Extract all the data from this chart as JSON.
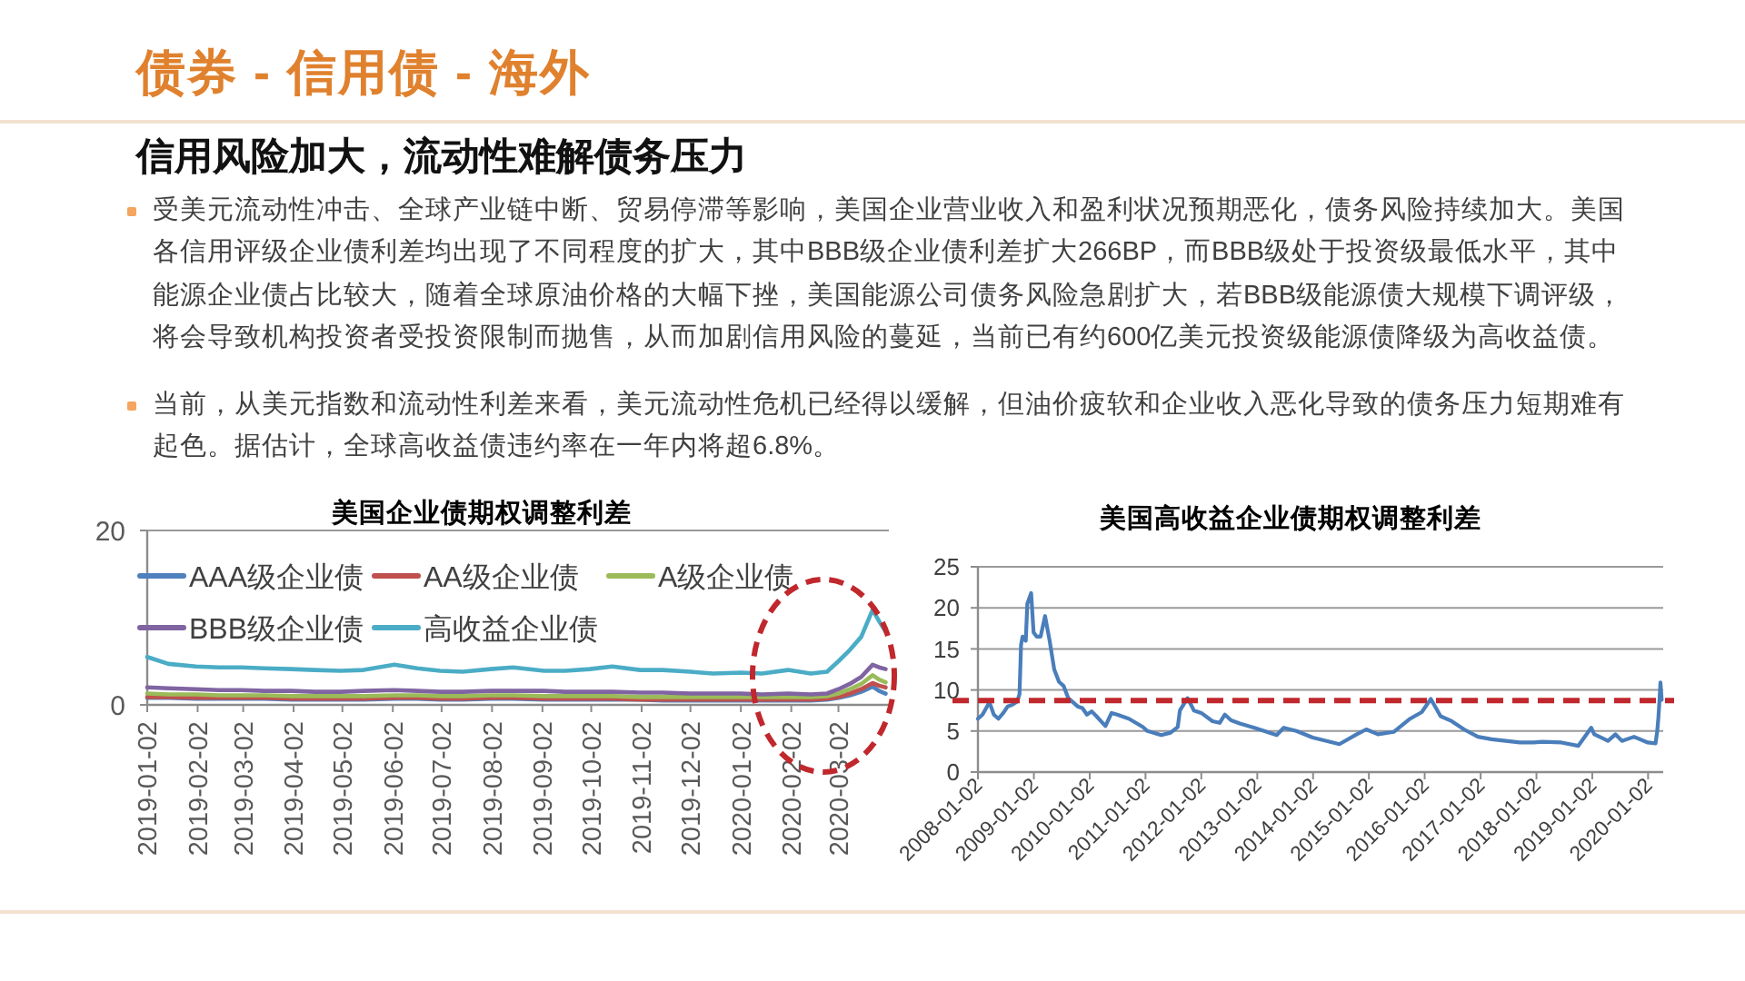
{
  "chart_data": [
    {
      "type": "other",
      "title": "债券 - 信用债 - 海外",
      "subtitle": "信用风险加大，流动性难解债务压力",
      "annotations": [
        "受美元流动性冲击、全球产业链中断、贸易停滞等影响，美国企业营业收入和盈利状况预期恶化，债务风险持续加大。美国各信用评级企业债利差均出现了不同程度的扩大，其中BBB级企业债利差扩大266BP，而BBB级处于投资级最低水平，其中能源企业债占比较大，随着全球原油价格的大幅下挫，美国能源公司债务风险急剧扩大，若BBB级能源债大规模下调评级，将会导致机构投资者受投资限制而抛售，从而加剧信用风险的蔓延，当前已有约600亿美元投资级能源债降级为高收益债。",
        "当前，从美元指数和流动性利差来看，美元流动性危机已经得以缓解，但油价疲软和企业收入恶化导致的债务压力短期难有起色。据估计，全球高收益债违约率在一年内将超6.8%。"
      ]
    },
    {
      "type": "line",
      "title": "美国企业债期权调整利差",
      "x": [
        "2019-01-02",
        "2019-01-15",
        "2019-02-01",
        "2019-02-15",
        "2019-03-01",
        "2019-03-15",
        "2019-04-01",
        "2019-04-15",
        "2019-05-01",
        "2019-05-15",
        "2019-06-03",
        "2019-06-17",
        "2019-07-01",
        "2019-07-15",
        "2019-08-01",
        "2019-08-15",
        "2019-09-03",
        "2019-09-16",
        "2019-10-01",
        "2019-10-15",
        "2019-11-01",
        "2019-11-15",
        "2019-12-02",
        "2019-12-16",
        "2020-01-02",
        "2020-01-15",
        "2020-01-31",
        "2020-02-14",
        "2020-02-24",
        "2020-03-02",
        "2020-03-09",
        "2020-03-16",
        "2020-03-23",
        "2020-03-27",
        "2020-03-31"
      ],
      "series": [
        {
          "name": "AAA级企业债",
          "color": "#4f81bd",
          "values": [
            0.8,
            0.8,
            0.7,
            0.7,
            0.7,
            0.7,
            0.6,
            0.6,
            0.6,
            0.6,
            0.7,
            0.7,
            0.6,
            0.6,
            0.7,
            0.7,
            0.6,
            0.6,
            0.6,
            0.6,
            0.6,
            0.5,
            0.5,
            0.5,
            0.5,
            0.5,
            0.5,
            0.5,
            0.6,
            0.8,
            1.1,
            1.5,
            2.1,
            1.6,
            1.3
          ]
        },
        {
          "name": "AA级企业债",
          "color": "#c0504d",
          "values": [
            0.9,
            0.9,
            0.8,
            0.8,
            0.8,
            0.8,
            0.7,
            0.7,
            0.7,
            0.7,
            0.8,
            0.8,
            0.7,
            0.7,
            0.8,
            0.8,
            0.7,
            0.7,
            0.7,
            0.7,
            0.6,
            0.6,
            0.6,
            0.6,
            0.6,
            0.6,
            0.6,
            0.6,
            0.7,
            0.9,
            1.3,
            1.8,
            2.5,
            2.2,
            2.0
          ]
        },
        {
          "name": "A级企业债",
          "color": "#9bbb59",
          "values": [
            1.3,
            1.2,
            1.2,
            1.1,
            1.1,
            1.1,
            1.0,
            1.0,
            1.0,
            1.0,
            1.1,
            1.1,
            1.0,
            1.0,
            1.1,
            1.1,
            1.0,
            1.0,
            1.0,
            1.0,
            0.9,
            0.9,
            0.9,
            0.9,
            0.9,
            0.9,
            0.9,
            0.9,
            1.0,
            1.3,
            1.8,
            2.4,
            3.4,
            2.9,
            2.6
          ]
        },
        {
          "name": "BBB级企业债",
          "color": "#8064a2",
          "values": [
            2.0,
            1.9,
            1.8,
            1.7,
            1.7,
            1.6,
            1.6,
            1.5,
            1.5,
            1.6,
            1.7,
            1.6,
            1.5,
            1.5,
            1.6,
            1.6,
            1.6,
            1.5,
            1.5,
            1.5,
            1.4,
            1.4,
            1.3,
            1.3,
            1.3,
            1.2,
            1.3,
            1.2,
            1.3,
            1.8,
            2.4,
            3.2,
            4.6,
            4.3,
            4.1
          ]
        },
        {
          "name": "高收益企业债",
          "color": "#4bacc6",
          "values": [
            5.5,
            4.7,
            4.4,
            4.3,
            4.3,
            4.2,
            4.1,
            4.0,
            3.9,
            4.0,
            4.6,
            4.2,
            3.9,
            3.8,
            4.1,
            4.3,
            3.9,
            3.9,
            4.1,
            4.4,
            4.0,
            4.0,
            3.8,
            3.6,
            3.7,
            3.6,
            4.0,
            3.6,
            3.8,
            5.0,
            6.3,
            7.8,
            10.9,
            9.6,
            8.4
          ]
        }
      ],
      "xlim": [
        "2019-01-02",
        "2020-04-02"
      ],
      "xticks": [
        "2019-01-02",
        "2019-02-02",
        "2019-03-02",
        "2019-04-02",
        "2019-05-02",
        "2019-06-02",
        "2019-07-02",
        "2019-08-02",
        "2019-09-02",
        "2019-10-02",
        "2019-11-02",
        "2019-12-02",
        "2020-01-02",
        "2020-02-02",
        "2020-03-02"
      ],
      "ylim": [
        0,
        20
      ],
      "yticks": [
        0,
        20
      ],
      "grid": "y",
      "legend": "top"
    },
    {
      "type": "line",
      "title": "美国高收益企业债期权调整利差",
      "x": [
        "2008-01-02",
        "2008-02-01",
        "2008-03-17",
        "2008-04-15",
        "2008-05-15",
        "2008-06-16",
        "2008-07-15",
        "2008-08-15",
        "2008-09-15",
        "2008-09-30",
        "2008-10-10",
        "2008-10-20",
        "2008-11-10",
        "2008-11-20",
        "2008-12-15",
        "2008-12-31",
        "2009-01-20",
        "2009-02-15",
        "2009-03-16",
        "2009-04-15",
        "2009-05-15",
        "2009-06-15",
        "2009-07-15",
        "2009-08-15",
        "2009-09-15",
        "2009-10-15",
        "2009-11-15",
        "2009-12-15",
        "2010-01-15",
        "2010-02-15",
        "2010-04-15",
        "2010-05-25",
        "2010-07-01",
        "2010-09-15",
        "2010-12-15",
        "2011-01-15",
        "2011-04-15",
        "2011-06-15",
        "2011-08-01",
        "2011-08-15",
        "2011-10-04",
        "2011-11-15",
        "2012-01-02",
        "2012-03-15",
        "2012-05-01",
        "2012-06-04",
        "2012-07-15",
        "2012-09-14",
        "2012-12-14",
        "2013-05-09",
        "2013-06-24",
        "2013-09-15",
        "2013-12-31",
        "2014-06-23",
        "2014-10-15",
        "2014-12-16",
        "2015-03-02",
        "2015-06-15",
        "2015-09-29",
        "2015-12-14",
        "2016-02-11",
        "2016-04-15",
        "2016-06-27",
        "2016-09-15",
        "2016-12-15",
        "2017-03-15",
        "2017-06-15",
        "2017-09-15",
        "2017-12-15",
        "2018-02-09",
        "2018-06-15",
        "2018-10-03",
        "2018-12-26",
        "2019-01-15",
        "2019-04-15",
        "2019-06-03",
        "2019-07-15",
        "2019-10-02",
        "2019-12-31",
        "2020-02-20",
        "2020-03-02",
        "2020-03-09",
        "2020-03-16",
        "2020-03-23",
        "2020-03-31"
      ],
      "series": [
        {
          "color": "#4a7ebb",
          "values": [
            6.5,
            7.0,
            8.5,
            7.0,
            6.5,
            7.2,
            8.0,
            8.2,
            8.6,
            9.5,
            15.5,
            16.5,
            16.0,
            20.5,
            21.8,
            17.0,
            16.5,
            16.5,
            19.0,
            16.0,
            12.5,
            11.0,
            10.5,
            9.0,
            8.5,
            8.0,
            7.8,
            7.0,
            7.4,
            6.8,
            5.6,
            7.2,
            7.0,
            6.5,
            5.5,
            5.0,
            4.5,
            4.8,
            5.5,
            7.5,
            9.0,
            7.5,
            7.2,
            6.2,
            6.0,
            7.0,
            6.3,
            5.9,
            5.4,
            4.5,
            5.4,
            5.0,
            4.2,
            3.4,
            4.6,
            5.2,
            4.6,
            4.9,
            6.5,
            7.3,
            8.9,
            6.8,
            6.2,
            5.2,
            4.3,
            4.0,
            3.8,
            3.6,
            3.6,
            3.7,
            3.6,
            3.2,
            5.4,
            4.6,
            3.8,
            4.6,
            3.8,
            4.3,
            3.6,
            3.5,
            5.0,
            6.5,
            8.5,
            10.9,
            8.8
          ]
        }
      ],
      "xlim": [
        "2008-01-02",
        "2020-04-10"
      ],
      "xticks": [
        "2008-01-02",
        "2009-01-02",
        "2010-01-02",
        "2011-01-02",
        "2012-01-02",
        "2013-01-02",
        "2014-01-02",
        "2015-01-02",
        "2016-01-02",
        "2017-01-02",
        "2018-01-02",
        "2019-01-02",
        "2020-01-02"
      ],
      "ylim": [
        0,
        25
      ],
      "yticks": [
        0,
        5,
        10,
        15,
        20,
        25
      ],
      "grid": "y",
      "ref_lines": [
        {
          "axis": "y",
          "value": 8.7,
          "color": "#c0282d",
          "line_style": "dashed"
        }
      ]
    }
  ]
}
